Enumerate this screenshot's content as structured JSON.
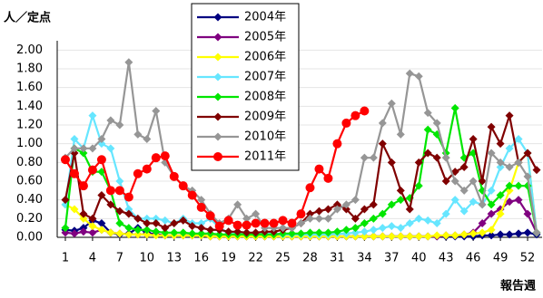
{
  "chart_data": {
    "type": "line",
    "y_label": "人／定点",
    "x_label": "報告週",
    "x": [
      1,
      2,
      3,
      4,
      5,
      6,
      7,
      8,
      9,
      10,
      11,
      12,
      13,
      14,
      15,
      16,
      17,
      18,
      19,
      20,
      21,
      22,
      23,
      24,
      25,
      26,
      27,
      28,
      29,
      30,
      31,
      32,
      33,
      34,
      35,
      36,
      37,
      38,
      39,
      40,
      41,
      42,
      43,
      44,
      45,
      46,
      47,
      48,
      49,
      50,
      51,
      52,
      53
    ],
    "xlim": [
      0.1,
      53.6
    ],
    "xticks": [
      1,
      4,
      7,
      10,
      13,
      16,
      19,
      22,
      25,
      28,
      31,
      34,
      37,
      40,
      43,
      46,
      49,
      52
    ],
    "ylim": [
      0,
      2.1
    ],
    "yticks": [
      {
        "value": 0,
        "label": "0.00"
      },
      {
        "value": 0.2,
        "label": "0.20"
      },
      {
        "value": 0.4,
        "label": "0.40"
      },
      {
        "value": 0.6,
        "label": "0.60"
      },
      {
        "value": 0.8,
        "label": "0.80"
      },
      {
        "value": 1,
        "label": "1.00"
      },
      {
        "value": 1.2,
        "label": "1.20"
      },
      {
        "value": 1.4,
        "label": "1.40"
      },
      {
        "value": 1.6,
        "label": "1.60"
      },
      {
        "value": 1.8,
        "label": "1.80"
      },
      {
        "value": 2,
        "label": "2.00"
      }
    ],
    "grid": true,
    "series": [
      {
        "name": "2004年",
        "color": "#000080",
        "marker": "diamond",
        "values": [
          0.08,
          0.07,
          0.1,
          0.18,
          0.15,
          0.05,
          0.03,
          0.04,
          0.1,
          0.05,
          0.03,
          0.02,
          0.02,
          0.02,
          0.02,
          0.02,
          0.01,
          0.01,
          0.01,
          0.01,
          0.01,
          0.01,
          0.01,
          0.01,
          0.01,
          0.01,
          0.01,
          0.01,
          0.01,
          0.01,
          0.01,
          0.01,
          0.01,
          0.01,
          0.01,
          0.01,
          0.01,
          0.01,
          0.01,
          0.01,
          0.01,
          0.01,
          0.01,
          0.01,
          0.01,
          0.01,
          0.02,
          0.02,
          0.03,
          0.03,
          0.04,
          0.05,
          0.03
        ]
      },
      {
        "name": "2005年",
        "color": "#800080",
        "marker": "diamond",
        "values": [
          0.05,
          0.04,
          0.06,
          0.05,
          0.08,
          0.05,
          0.04,
          0.03,
          0.03,
          0.03,
          0.03,
          0.02,
          0.02,
          0.02,
          0.02,
          0.02,
          0.01,
          0.01,
          0.01,
          0.01,
          0.01,
          0.01,
          0.01,
          0.01,
          0.01,
          0.01,
          0.01,
          0.01,
          0.01,
          0.01,
          0.01,
          0.01,
          0.01,
          0.01,
          0.01,
          0.01,
          0.01,
          0.01,
          0.01,
          0.01,
          0.01,
          0.01,
          0.02,
          0.02,
          0.03,
          0.05,
          0.15,
          0.25,
          0.3,
          0.38,
          0.4,
          0.25,
          0.05
        ]
      },
      {
        "name": "2006年",
        "color": "#ffff00",
        "marker": "diamond",
        "values": [
          0.35,
          0.3,
          0.2,
          0.12,
          0.08,
          0.05,
          0.04,
          0.03,
          0.03,
          0.03,
          0.02,
          0.02,
          0.02,
          0.02,
          0.02,
          0.02,
          0.01,
          0.01,
          0.01,
          0.01,
          0.01,
          0.01,
          0.01,
          0.01,
          0.01,
          0.01,
          0.01,
          0.01,
          0.01,
          0.01,
          0.01,
          0.01,
          0.01,
          0.01,
          0.01,
          0.01,
          0.01,
          0.01,
          0.01,
          0.01,
          0.01,
          0.02,
          0.02,
          0.02,
          0.03,
          0.04,
          0.05,
          0.08,
          0.25,
          0.5,
          0.8,
          0.9,
          0.05
        ]
      },
      {
        "name": "2007年",
        "color": "#66e6ff",
        "marker": "diamond",
        "values": [
          0.35,
          1.05,
          0.95,
          1.3,
          1.0,
          0.95,
          0.6,
          0.3,
          0.2,
          0.2,
          0.2,
          0.18,
          0.15,
          0.2,
          0.15,
          0.15,
          0.2,
          0.1,
          0.05,
          0.05,
          0.05,
          0.04,
          0.04,
          0.04,
          0.03,
          0.03,
          0.03,
          0.03,
          0.03,
          0.03,
          0.04,
          0.04,
          0.05,
          0.06,
          0.08,
          0.1,
          0.12,
          0.1,
          0.15,
          0.2,
          0.18,
          0.15,
          0.25,
          0.4,
          0.28,
          0.38,
          0.35,
          0.5,
          0.75,
          0.95,
          1.05,
          0.9,
          0.05
        ]
      },
      {
        "name": "2008年",
        "color": "#00e600",
        "marker": "diamond",
        "values": [
          0.1,
          0.95,
          0.9,
          0.7,
          0.7,
          0.5,
          0.15,
          0.1,
          0.08,
          0.08,
          0.06,
          0.05,
          0.05,
          0.05,
          0.04,
          0.04,
          0.04,
          0.03,
          0.03,
          0.03,
          0.03,
          0.03,
          0.03,
          0.03,
          0.04,
          0.04,
          0.04,
          0.05,
          0.05,
          0.05,
          0.06,
          0.08,
          0.1,
          0.15,
          0.2,
          0.25,
          0.35,
          0.4,
          0.42,
          0.55,
          1.15,
          1.1,
          0.9,
          1.38,
          0.85,
          0.9,
          0.5,
          0.35,
          0.45,
          0.55,
          0.55,
          0.55,
          0.05
        ]
      },
      {
        "name": "2009年",
        "color": "#800000",
        "marker": "diamond",
        "values": [
          0.4,
          0.9,
          0.25,
          0.2,
          0.45,
          0.35,
          0.28,
          0.25,
          0.2,
          0.15,
          0.15,
          0.1,
          0.15,
          0.18,
          0.12,
          0.1,
          0.08,
          0.08,
          0.06,
          0.06,
          0.05,
          0.05,
          0.06,
          0.06,
          0.08,
          0.1,
          0.15,
          0.25,
          0.28,
          0.3,
          0.35,
          0.3,
          0.2,
          0.3,
          0.35,
          1.0,
          0.8,
          0.5,
          0.3,
          0.8,
          0.9,
          0.85,
          0.6,
          0.7,
          0.75,
          1.05,
          0.6,
          1.18,
          1.0,
          1.3,
          0.8,
          0.9,
          0.72
        ]
      },
      {
        "name": "2010年",
        "color": "#969696",
        "marker": "diamond",
        "values": [
          0.85,
          0.95,
          0.95,
          0.95,
          1.05,
          1.25,
          1.2,
          1.87,
          1.1,
          1.05,
          1.35,
          0.8,
          0.65,
          0.55,
          0.5,
          0.4,
          0.25,
          0.15,
          0.2,
          0.35,
          0.2,
          0.25,
          0.1,
          0.1,
          0.1,
          0.1,
          0.15,
          0.2,
          0.2,
          0.2,
          0.3,
          0.35,
          0.4,
          0.85,
          0.85,
          1.22,
          1.43,
          1.1,
          1.75,
          1.72,
          1.33,
          1.22,
          0.85,
          0.6,
          0.5,
          0.6,
          0.35,
          0.9,
          0.8,
          0.75,
          0.8,
          0.65,
          0.05
        ]
      },
      {
        "name": "2011年",
        "color": "#ff0000",
        "marker": "circle",
        "values": [
          0.83,
          0.68,
          0.55,
          0.72,
          0.83,
          0.5,
          0.5,
          0.43,
          0.68,
          0.73,
          0.85,
          0.87,
          0.65,
          0.55,
          0.45,
          0.32,
          0.23,
          0.12,
          0.18,
          0.13,
          0.13,
          0.15,
          0.15,
          0.15,
          0.18,
          0.15,
          0.25,
          0.53,
          0.73,
          0.63,
          1.0,
          1.22,
          1.3,
          1.35,
          null,
          null,
          null,
          null,
          null,
          null,
          null,
          null,
          null,
          null,
          null,
          null,
          null,
          null,
          null,
          null,
          null,
          null,
          null
        ]
      }
    ]
  }
}
